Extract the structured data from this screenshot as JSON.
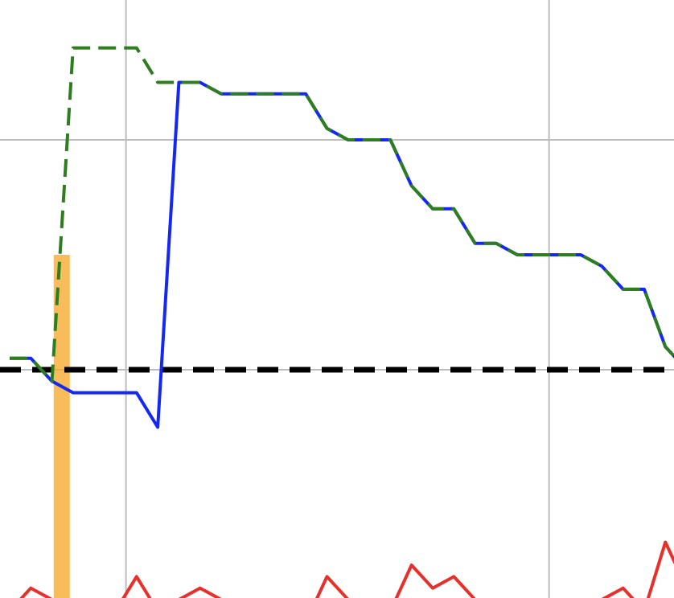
{
  "chart_data": {
    "type": "line",
    "title": "",
    "xlabel": "",
    "ylabel": "",
    "grid": true,
    "x": [
      0,
      1,
      2,
      3,
      4,
      5,
      6,
      7,
      8,
      9,
      10,
      11,
      12,
      13,
      14,
      15,
      16,
      17,
      18,
      19,
      20,
      21,
      22,
      23,
      24,
      25,
      26,
      27,
      28,
      29,
      30,
      31,
      32
    ],
    "xlim": [
      0,
      32
    ],
    "ylim": [
      -10,
      16
    ],
    "x_gridlines": [
      5.5,
      25.5
    ],
    "y_gridlines": [
      10
    ],
    "series": [
      {
        "style": "solid",
        "color": "#1428f5",
        "values": [
          0.5,
          0.5,
          -0.5,
          -1,
          -1,
          -1,
          -1,
          -2.5,
          12.5,
          12.5,
          12,
          12,
          12,
          12,
          12,
          10.5,
          10,
          10,
          10,
          8,
          7,
          7,
          5.5,
          5.5,
          5,
          5,
          5,
          5,
          4.5,
          3.5,
          3.5,
          1,
          0
        ]
      },
      {
        "style": "dashed",
        "color": "#2e7d1f",
        "values": [
          0.5,
          0.5,
          -0.5,
          14,
          14,
          14,
          14,
          12.5,
          12.5,
          12.5,
          12,
          12,
          12,
          12,
          12,
          10.5,
          10,
          10,
          10,
          8,
          7,
          7,
          5.5,
          5.5,
          5,
          5,
          5,
          5,
          4.5,
          3.5,
          3.5,
          1,
          0
        ]
      },
      {
        "style": "solid",
        "color": "#e8302a",
        "values": [
          -10.5,
          -9.5,
          -10,
          -10.5,
          -11,
          -10.5,
          -9,
          -10.5,
          -10,
          -9.5,
          -10,
          -10.5,
          -11,
          -11,
          -11,
          -9,
          -10,
          -10.5,
          -10.5,
          -8.5,
          -9.5,
          -9,
          -10,
          -10.5,
          -10.5,
          -11,
          -11,
          -10.5,
          -10,
          -9.5,
          -10.5,
          -7.5,
          -9.5
        ]
      }
    ],
    "reference_line": {
      "y": 0,
      "color": "#000000",
      "style": "dashed"
    },
    "highlight_bar": {
      "x": 2.5,
      "y_top": 5,
      "color": "#f5a623"
    }
  }
}
